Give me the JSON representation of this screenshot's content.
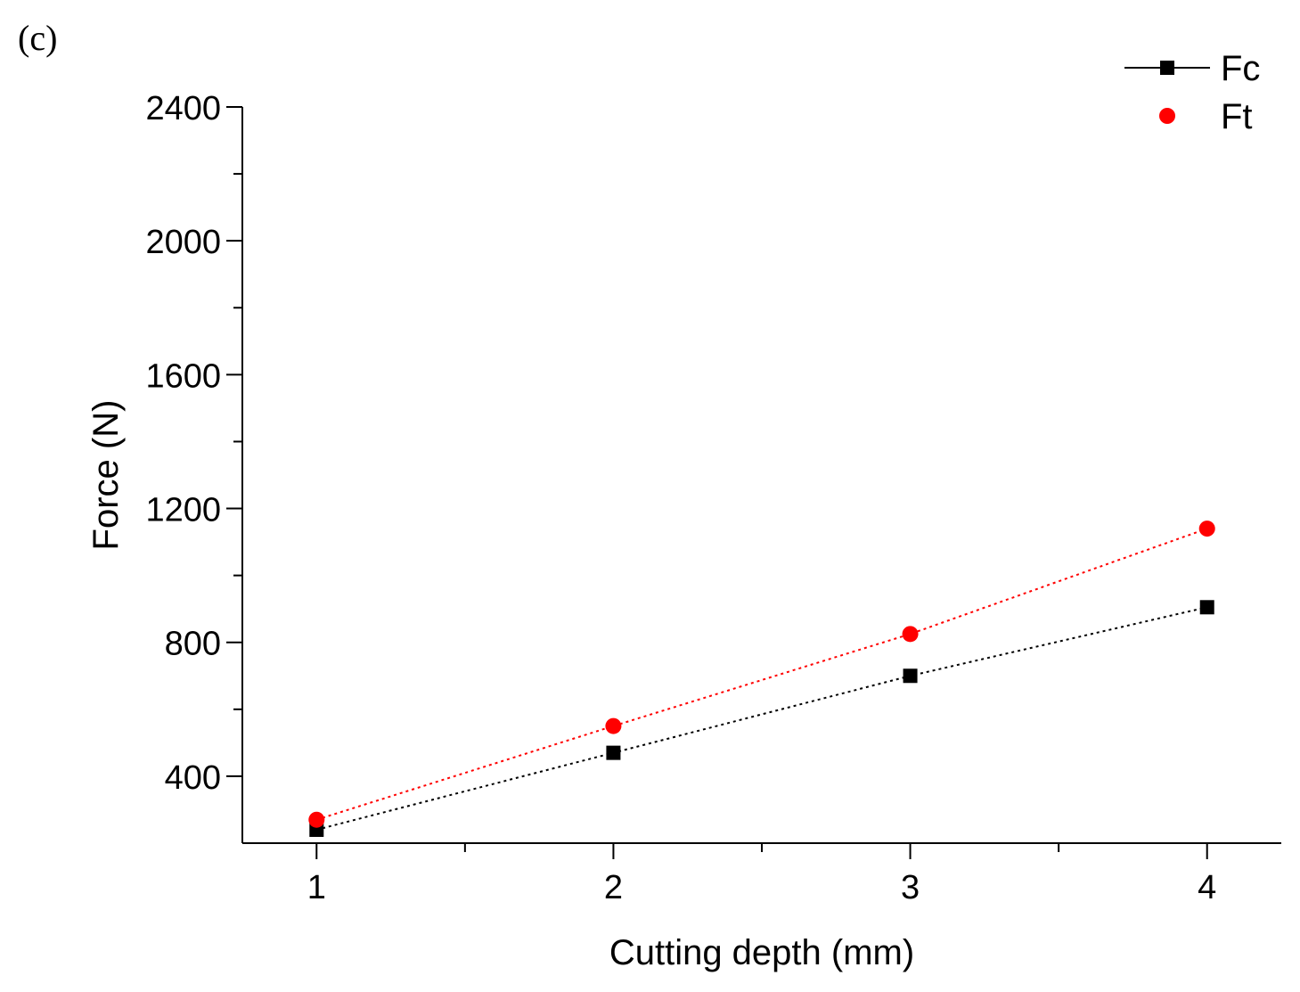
{
  "panel_label": "(c)",
  "chart_data": {
    "type": "line",
    "title": "",
    "xlabel": "Cutting depth (mm)",
    "ylabel": "Force (N)",
    "x": [
      1,
      2,
      3,
      4
    ],
    "xlim": [
      0.75,
      4.25
    ],
    "ylim": [
      200,
      2400
    ],
    "x_ticks": [
      1,
      2,
      3,
      4
    ],
    "x_minor_ticks": [
      1.5,
      2.5,
      3.5
    ],
    "y_ticks": [
      400,
      800,
      1200,
      1600,
      2000,
      2400
    ],
    "y_minor_ticks": [
      600,
      1000,
      1400,
      1800,
      2200
    ],
    "grid": false,
    "legend_position": "top-right",
    "series": [
      {
        "name": "Fc",
        "marker": "square",
        "color": "#000000",
        "values": [
          240,
          470,
          700,
          905
        ]
      },
      {
        "name": "Ft",
        "marker": "circle",
        "color": "#ff0000",
        "values": [
          270,
          550,
          825,
          1140
        ]
      }
    ]
  }
}
